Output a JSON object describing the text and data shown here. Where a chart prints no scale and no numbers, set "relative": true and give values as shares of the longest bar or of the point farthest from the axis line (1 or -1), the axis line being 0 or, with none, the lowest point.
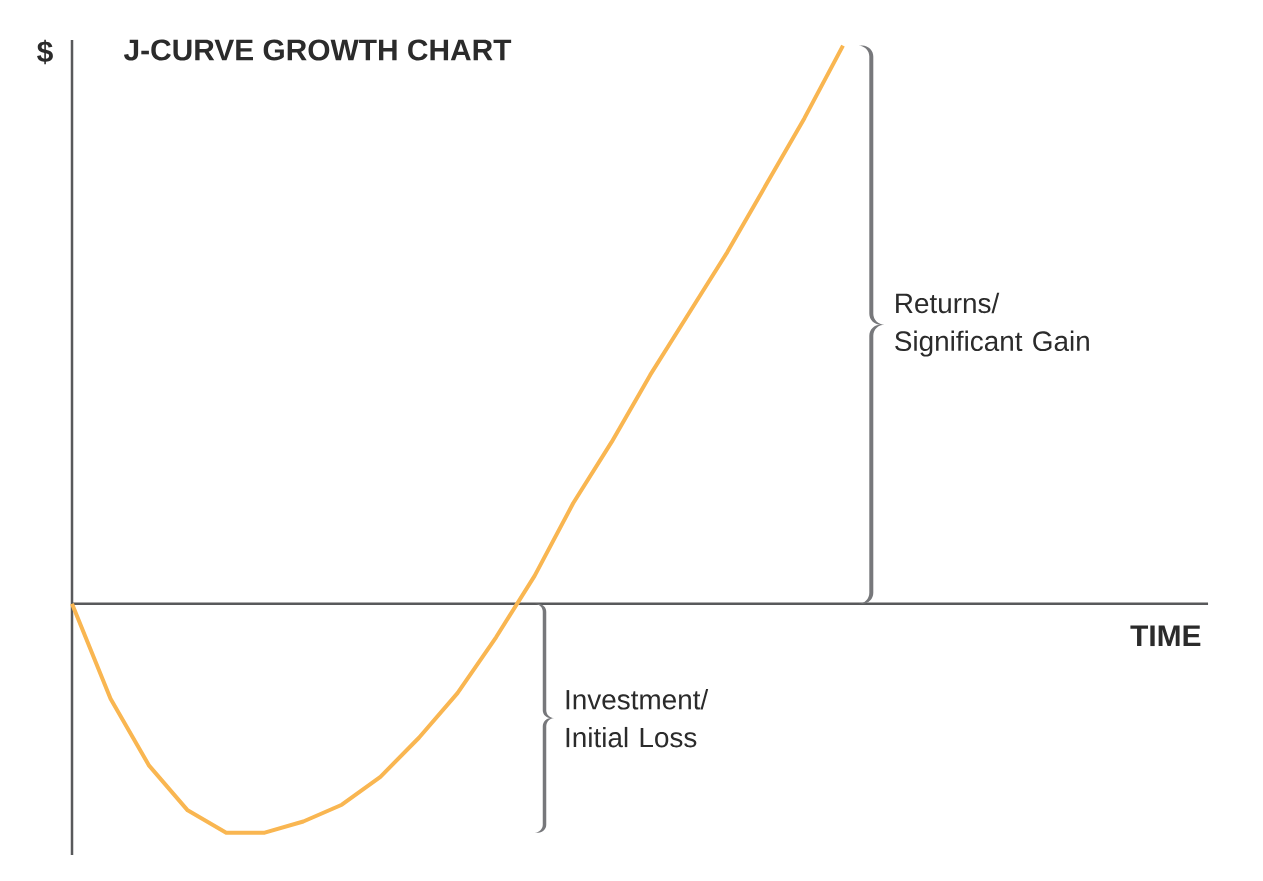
{
  "chart_data": {
    "type": "line",
    "title": "J-CURVE GROWTH CHART",
    "ylabel": "$",
    "relative": true,
    "categories": [
      null,
      null,
      null,
      null,
      null,
      null,
      null,
      null,
      null,
      null,
      null,
      null,
      null,
      null,
      null,
      null,
      null,
      null,
      null,
      null,
      null
    ],
    "series": [
      {
        "color": "#f9b651",
        "values": [
          0,
          -0.17,
          -0.29,
          -0.37,
          -0.41,
          -0.41,
          -0.39,
          -0.36,
          -0.31,
          -0.24,
          -0.16,
          -0.06,
          0.05,
          0.18,
          0.29,
          0.41,
          0.52,
          0.63,
          0.75,
          0.87,
          1
        ]
      }
    ],
    "annotations": [
      "Returns/ Significant Gain",
      "Investment/ Initial Loss",
      "TIME"
    ]
  }
}
